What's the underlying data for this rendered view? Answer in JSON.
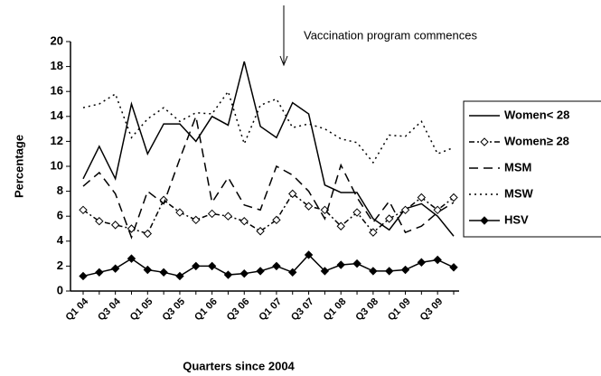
{
  "chart_data": {
    "type": "line",
    "annotation": "Vaccination program commences",
    "xlabel": "Quarters since 2004",
    "ylabel": "Percentage",
    "categories": [
      "Q1 04",
      null,
      "Q3 04",
      null,
      "Q1 05",
      null,
      "Q3 05",
      null,
      "Q1 06",
      null,
      "Q3 06",
      null,
      "Q1 07",
      null,
      "Q3 07",
      null,
      "Q1 08",
      null,
      "Q3 08",
      null,
      "Q1 09",
      null,
      "Q3 09",
      null
    ],
    "ylim": [
      0,
      20
    ],
    "yticks": [
      0,
      2,
      4,
      6,
      8,
      10,
      12,
      14,
      16,
      18,
      20
    ],
    "legend": "right",
    "series": [
      {
        "name": "Women< 28",
        "color": "#000000",
        "dash": "solid",
        "marker": "none",
        "values": [
          9,
          11.6,
          9,
          15,
          11,
          13.4,
          13.4,
          12,
          14,
          13.3,
          18.4,
          13.2,
          12.3,
          15.1,
          14.2,
          8.5,
          7.9,
          7.9,
          5.8,
          4.9,
          6.6,
          7,
          6,
          4.4
        ]
      },
      {
        "name": "Women≥ 28",
        "color": "#000000",
        "dash": "dashdot",
        "marker": "open-diamond",
        "values": [
          6.5,
          5.6,
          5.3,
          5,
          4.6,
          7.3,
          6.3,
          5.7,
          6.2,
          6,
          5.6,
          4.8,
          5.7,
          7.8,
          6.8,
          6.5,
          5.2,
          6.3,
          4.7,
          5.8,
          6.5,
          7.5,
          6.5,
          7.5
        ]
      },
      {
        "name": "MSM",
        "color": "#000000",
        "dash": "dashed",
        "marker": "none",
        "values": [
          8.4,
          9.5,
          7.8,
          4.3,
          8,
          7,
          10.6,
          14,
          7.1,
          9.1,
          6.9,
          6.5,
          10,
          9.3,
          8,
          5.8,
          10.1,
          7.5,
          5.5,
          7.2,
          4.7,
          5.2,
          6.3,
          7.1
        ]
      },
      {
        "name": "MSW",
        "color": "#000000",
        "dash": "dotted",
        "marker": "none",
        "values": [
          14.7,
          15,
          15.8,
          12.3,
          13.8,
          14.7,
          13.6,
          14.3,
          14.2,
          16,
          11.8,
          14.9,
          15.4,
          13.1,
          13.4,
          13,
          12.2,
          11.9,
          10.3,
          12.5,
          12.4,
          13.6,
          11,
          11.5
        ]
      },
      {
        "name": "HSV",
        "color": "#000000",
        "dash": "solid",
        "marker": "filled-diamond",
        "values": [
          1.2,
          1.5,
          1.8,
          2.6,
          1.7,
          1.5,
          1.2,
          2,
          2,
          1.3,
          1.4,
          1.6,
          2,
          1.5,
          2.9,
          1.6,
          2.1,
          2.2,
          1.6,
          1.6,
          1.7,
          2.3,
          2.5,
          1.9
        ]
      }
    ]
  }
}
